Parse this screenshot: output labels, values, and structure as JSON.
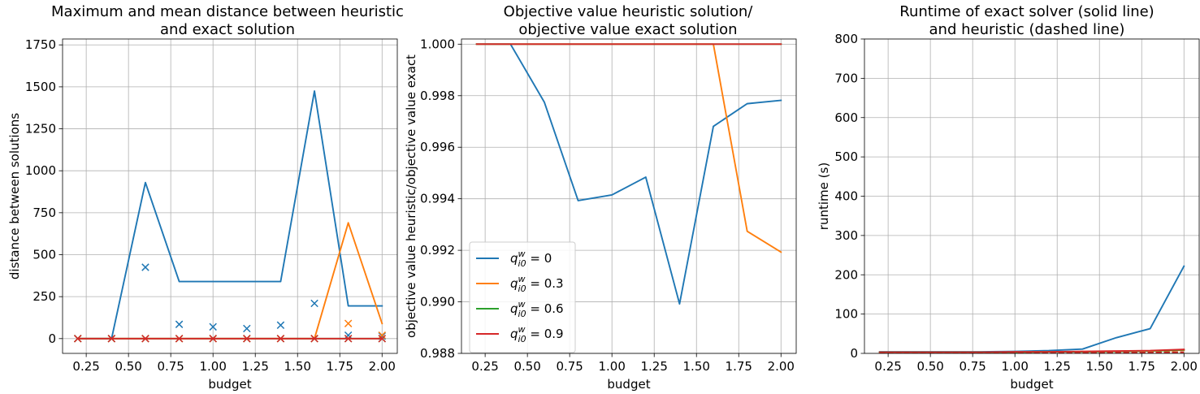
{
  "chart_data": [
    {
      "type": "line",
      "title": [
        "Maximum and mean distance between heuristic",
        "and exact solution"
      ],
      "xlabel": "budget",
      "ylabel": "distance between solutions",
      "xlim": [
        0.11,
        2.09
      ],
      "ylim": [
        -88,
        1785
      ],
      "xticks": [
        0.25,
        0.5,
        0.75,
        1.0,
        1.25,
        1.5,
        1.75,
        2.0
      ],
      "xtick_labels": [
        "0.25",
        "0.50",
        "0.75",
        "1.00",
        "1.25",
        "1.50",
        "1.75",
        "2.00"
      ],
      "yticks": [
        0,
        250,
        500,
        750,
        1000,
        1250,
        1500,
        1750
      ],
      "ytick_labels": [
        "0",
        "250",
        "500",
        "750",
        "1000",
        "1250",
        "1500",
        "1750"
      ],
      "grid": true,
      "x": [
        0.2,
        0.4,
        0.6,
        0.8,
        1.0,
        1.2,
        1.4,
        1.6,
        1.8,
        2.0
      ],
      "series": [
        {
          "color": "#1f77b4",
          "style": "line",
          "values": [
            0,
            0,
            930,
            340,
            340,
            340,
            340,
            1475,
            195,
            195
          ]
        },
        {
          "color": "#1f77b4",
          "style": "marker",
          "values": [
            0,
            0,
            425,
            85,
            70,
            60,
            80,
            210,
            20,
            15
          ]
        },
        {
          "color": "#ff7f0e",
          "style": "line",
          "values": [
            0,
            0,
            0,
            0,
            0,
            0,
            0,
            0,
            690,
            90
          ]
        },
        {
          "color": "#ff7f0e",
          "style": "marker",
          "values": [
            0,
            0,
            0,
            0,
            0,
            0,
            0,
            0,
            90,
            20
          ]
        },
        {
          "color": "#2ca02c",
          "style": "line",
          "values": [
            0,
            0,
            0,
            0,
            0,
            0,
            0,
            0,
            0,
            0
          ]
        },
        {
          "color": "#2ca02c",
          "style": "marker",
          "values": [
            0,
            0,
            0,
            0,
            0,
            0,
            0,
            0,
            0,
            0
          ]
        },
        {
          "color": "#d62728",
          "style": "line",
          "values": [
            0,
            0,
            0,
            0,
            0,
            0,
            0,
            0,
            0,
            0
          ]
        },
        {
          "color": "#d62728",
          "style": "marker",
          "values": [
            0,
            0,
            0,
            0,
            0,
            0,
            0,
            0,
            0,
            0
          ]
        }
      ]
    },
    {
      "type": "line",
      "title": [
        "Objective value heuristic solution/",
        "objective value exact solution"
      ],
      "xlabel": "budget",
      "ylabel": "objective value heuristic/objective value exact",
      "xlim": [
        0.11,
        2.09
      ],
      "ylim": [
        0.988,
        1.0002
      ],
      "xticks": [
        0.25,
        0.5,
        0.75,
        1.0,
        1.25,
        1.5,
        1.75,
        2.0
      ],
      "xtick_labels": [
        "0.25",
        "0.50",
        "0.75",
        "1.00",
        "1.25",
        "1.50",
        "1.75",
        "2.00"
      ],
      "yticks": [
        0.988,
        0.99,
        0.992,
        0.994,
        0.996,
        0.998,
        1.0
      ],
      "ytick_labels": [
        "0.988",
        "0.990",
        "0.992",
        "0.994",
        "0.996",
        "0.998",
        "1.000"
      ],
      "grid": true,
      "legend": {
        "position": "lower-left",
        "entries": [
          {
            "label_q": "q",
            "label_sup": "w",
            "label_sub": "i0",
            "label_eq": " = 0",
            "color": "#1f77b4"
          },
          {
            "label_q": "q",
            "label_sup": "w",
            "label_sub": "i0",
            "label_eq": " = 0.3",
            "color": "#ff7f0e"
          },
          {
            "label_q": "q",
            "label_sup": "w",
            "label_sub": "i0",
            "label_eq": " = 0.6",
            "color": "#2ca02c"
          },
          {
            "label_q": "q",
            "label_sup": "w",
            "label_sub": "i0",
            "label_eq": " = 0.9",
            "color": "#d62728"
          }
        ]
      },
      "x": [
        0.2,
        0.4,
        0.6,
        0.8,
        1.0,
        1.2,
        1.4,
        1.6,
        1.8,
        2.0
      ],
      "series": [
        {
          "color": "#1f77b4",
          "style": "line",
          "values": [
            1.0,
            1.0,
            0.99775,
            0.99393,
            0.99415,
            0.99484,
            0.98992,
            0.99681,
            0.99769,
            0.99782
          ]
        },
        {
          "color": "#ff7f0e",
          "style": "line",
          "values": [
            1.0,
            1.0,
            1.0,
            1.0,
            1.0,
            1.0,
            1.0,
            1.0,
            0.99274,
            0.99193
          ]
        },
        {
          "color": "#2ca02c",
          "style": "line",
          "values": [
            1.0,
            1.0,
            1.0,
            1.0,
            1.0,
            1.0,
            1.0,
            1.0,
            1.0,
            1.0
          ]
        },
        {
          "color": "#d62728",
          "style": "line",
          "values": [
            1.0,
            1.0,
            1.0,
            1.0,
            1.0,
            1.0,
            1.0,
            1.0,
            1.0,
            1.0
          ]
        }
      ]
    },
    {
      "type": "line",
      "title": [
        "Runtime of exact solver (solid line)",
        "and heuristic (dashed line)"
      ],
      "xlabel": "budget",
      "ylabel": "runtime (s)",
      "xlim": [
        0.11,
        2.09
      ],
      "ylim": [
        0,
        800
      ],
      "xticks": [
        0.25,
        0.5,
        0.75,
        1.0,
        1.25,
        1.5,
        1.75,
        2.0
      ],
      "xtick_labels": [
        "0.25",
        "0.50",
        "0.75",
        "1.00",
        "1.25",
        "1.50",
        "1.75",
        "2.00"
      ],
      "yticks": [
        0,
        100,
        200,
        300,
        400,
        500,
        600,
        700,
        800
      ],
      "ytick_labels": [
        "0",
        "100",
        "200",
        "300",
        "400",
        "500",
        "600",
        "700",
        "800"
      ],
      "grid": true,
      "x": [
        0.2,
        0.4,
        0.6,
        0.8,
        1.0,
        1.2,
        1.4,
        1.6,
        1.8,
        2.0
      ],
      "series": [
        {
          "color": "#1f77b4",
          "style": "line",
          "values": [
            4,
            4,
            4,
            4,
            5,
            7,
            11,
            40,
            63,
            222
          ]
        },
        {
          "color": "#ff7f0e",
          "style": "line",
          "values": [
            3,
            3,
            3,
            3,
            3,
            4,
            4,
            5,
            6,
            8
          ]
        },
        {
          "color": "#2ca02c",
          "style": "line",
          "values": [
            3,
            3,
            3,
            3,
            3,
            4,
            4,
            5,
            6,
            9
          ]
        },
        {
          "color": "#d62728",
          "style": "line",
          "values": [
            3,
            3,
            3,
            3,
            4,
            4,
            5,
            6,
            7,
            10
          ]
        },
        {
          "color": "#1f77b4",
          "style": "dashed",
          "values": [
            2,
            2,
            2,
            2,
            2,
            2,
            2,
            2,
            3,
            3
          ]
        },
        {
          "color": "#ff7f0e",
          "style": "dashed",
          "values": [
            2,
            2,
            2,
            2,
            2,
            2,
            2,
            2,
            3,
            3
          ]
        },
        {
          "color": "#2ca02c",
          "style": "dashed",
          "values": [
            2,
            2,
            2,
            2,
            2,
            2,
            2,
            2,
            2,
            3
          ]
        },
        {
          "color": "#d62728",
          "style": "dashed",
          "values": [
            2,
            2,
            2,
            2,
            2,
            2,
            2,
            2,
            2,
            3
          ]
        }
      ]
    }
  ]
}
